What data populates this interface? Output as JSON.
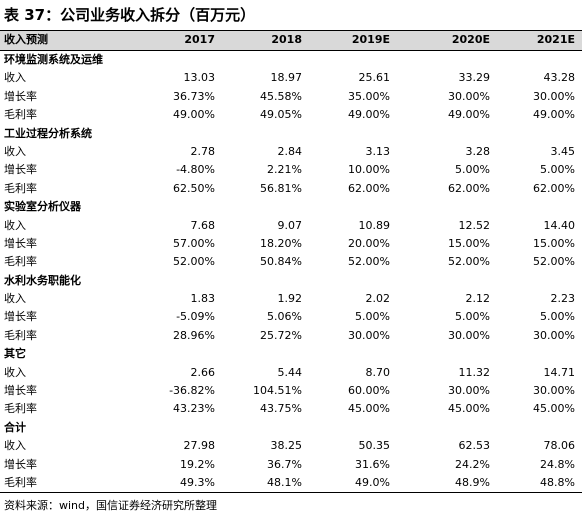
{
  "title": "表 37：公司业务收入拆分（百万元）",
  "table": {
    "header": [
      "收入预测",
      "2017",
      "2018",
      "2019E",
      "2020E",
      "2021E"
    ],
    "sections": [
      {
        "title": "环境监测系统及运维",
        "rows": [
          [
            "收入",
            "13.03",
            "18.97",
            "25.61",
            "33.29",
            "43.28"
          ],
          [
            "增长率",
            "36.73%",
            "45.58%",
            "35.00%",
            "30.00%",
            "30.00%"
          ],
          [
            "毛利率",
            "49.00%",
            "49.05%",
            "49.00%",
            "49.00%",
            "49.00%"
          ]
        ]
      },
      {
        "title": "工业过程分析系统",
        "rows": [
          [
            "收入",
            "2.78",
            "2.84",
            "3.13",
            "3.28",
            "3.45"
          ],
          [
            "增长率",
            "-4.80%",
            "2.21%",
            "10.00%",
            "5.00%",
            "5.00%"
          ],
          [
            "毛利率",
            "62.50%",
            "56.81%",
            "62.00%",
            "62.00%",
            "62.00%"
          ]
        ]
      },
      {
        "title": "实验室分析仪器",
        "rows": [
          [
            "收入",
            "7.68",
            "9.07",
            "10.89",
            "12.52",
            "14.40"
          ],
          [
            "增长率",
            "57.00%",
            "18.20%",
            "20.00%",
            "15.00%",
            "15.00%"
          ],
          [
            "毛利率",
            "52.00%",
            "50.84%",
            "52.00%",
            "52.00%",
            "52.00%"
          ]
        ]
      },
      {
        "title": "水利水务职能化",
        "rows": [
          [
            "收入",
            "1.83",
            "1.92",
            "2.02",
            "2.12",
            "2.23"
          ],
          [
            "增长率",
            "-5.09%",
            "5.06%",
            "5.00%",
            "5.00%",
            "5.00%"
          ],
          [
            "毛利率",
            "28.96%",
            "25.72%",
            "30.00%",
            "30.00%",
            "30.00%"
          ]
        ]
      },
      {
        "title": "其它",
        "rows": [
          [
            "收入",
            "2.66",
            "5.44",
            "8.70",
            "11.32",
            "14.71"
          ],
          [
            "增长率",
            "-36.82%",
            "104.51%",
            "60.00%",
            "30.00%",
            "30.00%"
          ],
          [
            "毛利率",
            "43.23%",
            "43.75%",
            "45.00%",
            "45.00%",
            "45.00%"
          ]
        ]
      },
      {
        "title": "合计",
        "rows": [
          [
            "收入",
            "27.98",
            "38.25",
            "50.35",
            "62.53",
            "78.06"
          ],
          [
            "增长率",
            "19.2%",
            "36.7%",
            "31.6%",
            "24.2%",
            "24.8%"
          ],
          [
            "毛利率",
            "49.3%",
            "48.1%",
            "49.0%",
            "48.9%",
            "48.8%"
          ]
        ]
      }
    ]
  },
  "source": "资料来源：wind，国信证券经济研究所整理"
}
